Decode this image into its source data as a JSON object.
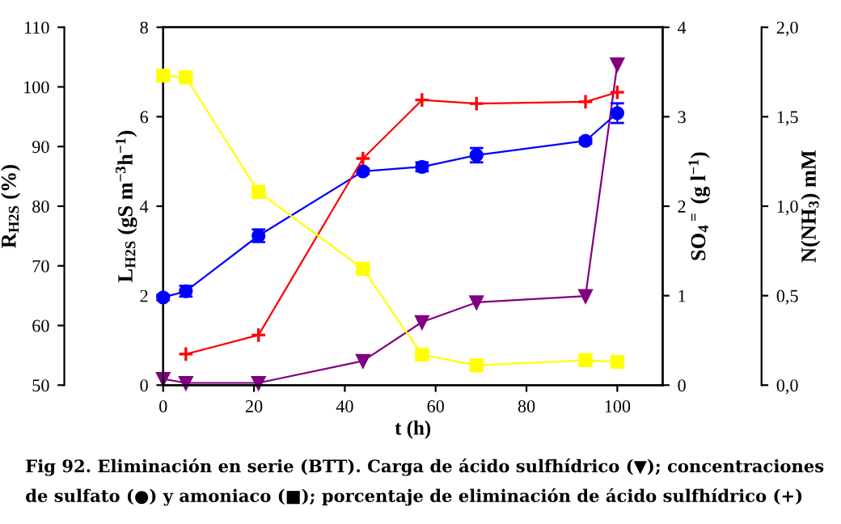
{
  "chart_data": [
    {
      "type": "line",
      "xlabel": "t (h)",
      "ylabel": "L$_{H2S}$ (gS m$^{−3}$h$^{−1}$)",
      "y2label": "SO$_{4}$$^{=}$ (g l$^{−1}$)",
      "y3label": "R$_{H2S}$ (%)",
      "xlim": [
        0,
        110
      ],
      "xticks": [
        0,
        20,
        40,
        60,
        80,
        100
      ],
      "ylim": [
        0,
        8
      ],
      "yticks": [
        0,
        2,
        4,
        6,
        8
      ],
      "y2lim": [
        0,
        4
      ],
      "y2ticks": [
        0,
        1,
        2,
        3,
        4
      ],
      "y3lim": [
        50,
        110
      ],
      "y3ticks": [
        50,
        60,
        70,
        80,
        90,
        100,
        110
      ],
      "grid": false,
      "series": [
        {
          "color": "#800080",
          "axis": "y",
          "marker": "triangle",
          "x": [
            0,
            5,
            21,
            44,
            57,
            69,
            93,
            100
          ],
          "values": [
            0.14,
            0.05,
            0.05,
            0.54,
            1.41,
            1.85,
            1.99,
            7.17
          ]
        },
        {
          "color": "#ff0000",
          "axis": "y3",
          "marker": "cross",
          "x": [
            5,
            21,
            44,
            57,
            69,
            93,
            100
          ],
          "values": [
            55.2,
            58.4,
            88.0,
            97.8,
            97.2,
            97.5,
            99.1
          ]
        },
        {
          "color": "#0000ff",
          "axis": "y2",
          "marker": "circle",
          "x": [
            0,
            5,
            21,
            44,
            57,
            69,
            93,
            100
          ],
          "values": [
            0.98,
            1.05,
            1.67,
            2.39,
            2.44,
            2.57,
            2.73,
            3.04
          ],
          "errors": [
            0.03,
            0.06,
            0.07,
            0.03,
            0.05,
            0.08,
            0.03,
            0.11
          ]
        }
      ],
      "annotations": [
        "Fig 92. Eliminación en serie (BTT). Carga de ácido sulfhídrico (▼); concentraciones de sulfato (●) y amoniaco (■); porcentaje de eliminación de ácido sulfhídrico (+)"
      ]
    },
    {
      "type": "line",
      "ylabel": "N(NH$_{3}$) mM",
      "xlim": [
        0,
        110
      ],
      "ylim": [
        0,
        2
      ],
      "yticks": [
        {
          "value": 0,
          "label": "0,0"
        },
        {
          "value": 0.5,
          "label": "0,5"
        },
        {
          "value": 1,
          "label": "1,0"
        },
        {
          "value": 1.5,
          "label": "1,5"
        },
        {
          "value": 2,
          "label": "2,0"
        }
      ],
      "tick_labels": "y",
      "grid": false,
      "series": [
        {
          "color": "#ffff00",
          "marker": "square",
          "x": [
            0,
            5,
            21,
            44,
            57,
            69,
            93,
            100
          ],
          "values": [
            1.73,
            1.72,
            1.08,
            0.65,
            0.17,
            0.11,
            0.14,
            0.13
          ],
          "errors": [
            0.02,
            0.02,
            0.01,
            0.01,
            0.02,
            0.01,
            0.03,
            0.02
          ]
        }
      ]
    }
  ]
}
